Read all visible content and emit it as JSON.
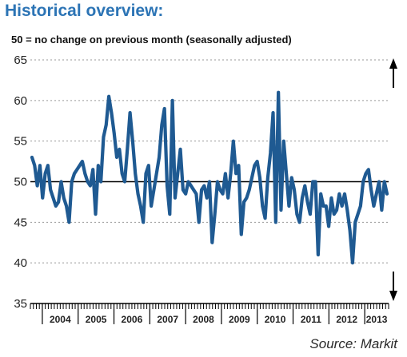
{
  "title": "Historical overview:",
  "subtitle": "50 = no change on previous month (seasonally adjusted)",
  "source": "Source: Markit",
  "colors": {
    "line": "#1f5a92",
    "grid": "#9a9a9a",
    "title": "#2c74b5",
    "reference": "#000000"
  },
  "icons": {
    "up": "arrow-up-icon",
    "down": "arrow-down-icon"
  },
  "chart_data": {
    "type": "line",
    "title": "",
    "xlabel": "",
    "ylabel": "",
    "ylim": [
      35,
      65
    ],
    "yticks": [
      35,
      40,
      45,
      50,
      55,
      60,
      65
    ],
    "reference_line": 50,
    "grid": "horizontal dotted",
    "x_labels": [
      "2004",
      "2005",
      "2006",
      "2007",
      "2008",
      "2009",
      "2010",
      "2011",
      "2012",
      "2013"
    ],
    "x_start": "2003-09",
    "x_end": "2013-09",
    "series": [
      {
        "name": "",
        "values": [
          53.0,
          52.0,
          49.5,
          52.0,
          48.0,
          51.0,
          52.0,
          49.0,
          48.0,
          47.0,
          47.5,
          50.0,
          48.0,
          47.0,
          45.0,
          50.0,
          51.0,
          51.5,
          52.0,
          52.5,
          51.0,
          50.0,
          49.5,
          51.5,
          46.0,
          52.0,
          50.0,
          55.5,
          57.0,
          60.5,
          58.5,
          56.0,
          53.0,
          54.0,
          51.0,
          50.0,
          54.0,
          58.5,
          55.0,
          51.0,
          48.5,
          47.0,
          45.0,
          51.0,
          52.0,
          47.0,
          49.0,
          51.0,
          53.0,
          57.0,
          59.0,
          49.5,
          46.0,
          60.0,
          48.0,
          51.0,
          54.0,
          49.0,
          48.5,
          50.0,
          49.5,
          49.0,
          48.5,
          45.0,
          49.0,
          49.5,
          48.0,
          50.0,
          42.5,
          46.0,
          50.0,
          49.0,
          48.5,
          51.0,
          48.0,
          51.0,
          55.0,
          51.0,
          52.0,
          43.5,
          47.5,
          48.0,
          49.0,
          50.5,
          52.0,
          52.5,
          50.5,
          47.0,
          45.5,
          50.5,
          53.5,
          58.5,
          45.0,
          61.0,
          46.5,
          55.0,
          51.0,
          47.0,
          50.5,
          49.0,
          46.0,
          45.0,
          48.0,
          49.5,
          47.5,
          46.0,
          50.0,
          50.0,
          41.0,
          48.5,
          47.0,
          47.0,
          44.5,
          48.0,
          46.0,
          46.5,
          48.5,
          47.0,
          48.5,
          46.5,
          44.0,
          40.0,
          45.0,
          46.0,
          47.0,
          50.0,
          51.0,
          51.5,
          49.0,
          47.0,
          48.5,
          50.0,
          46.5,
          50.0,
          48.5
        ]
      }
    ]
  }
}
